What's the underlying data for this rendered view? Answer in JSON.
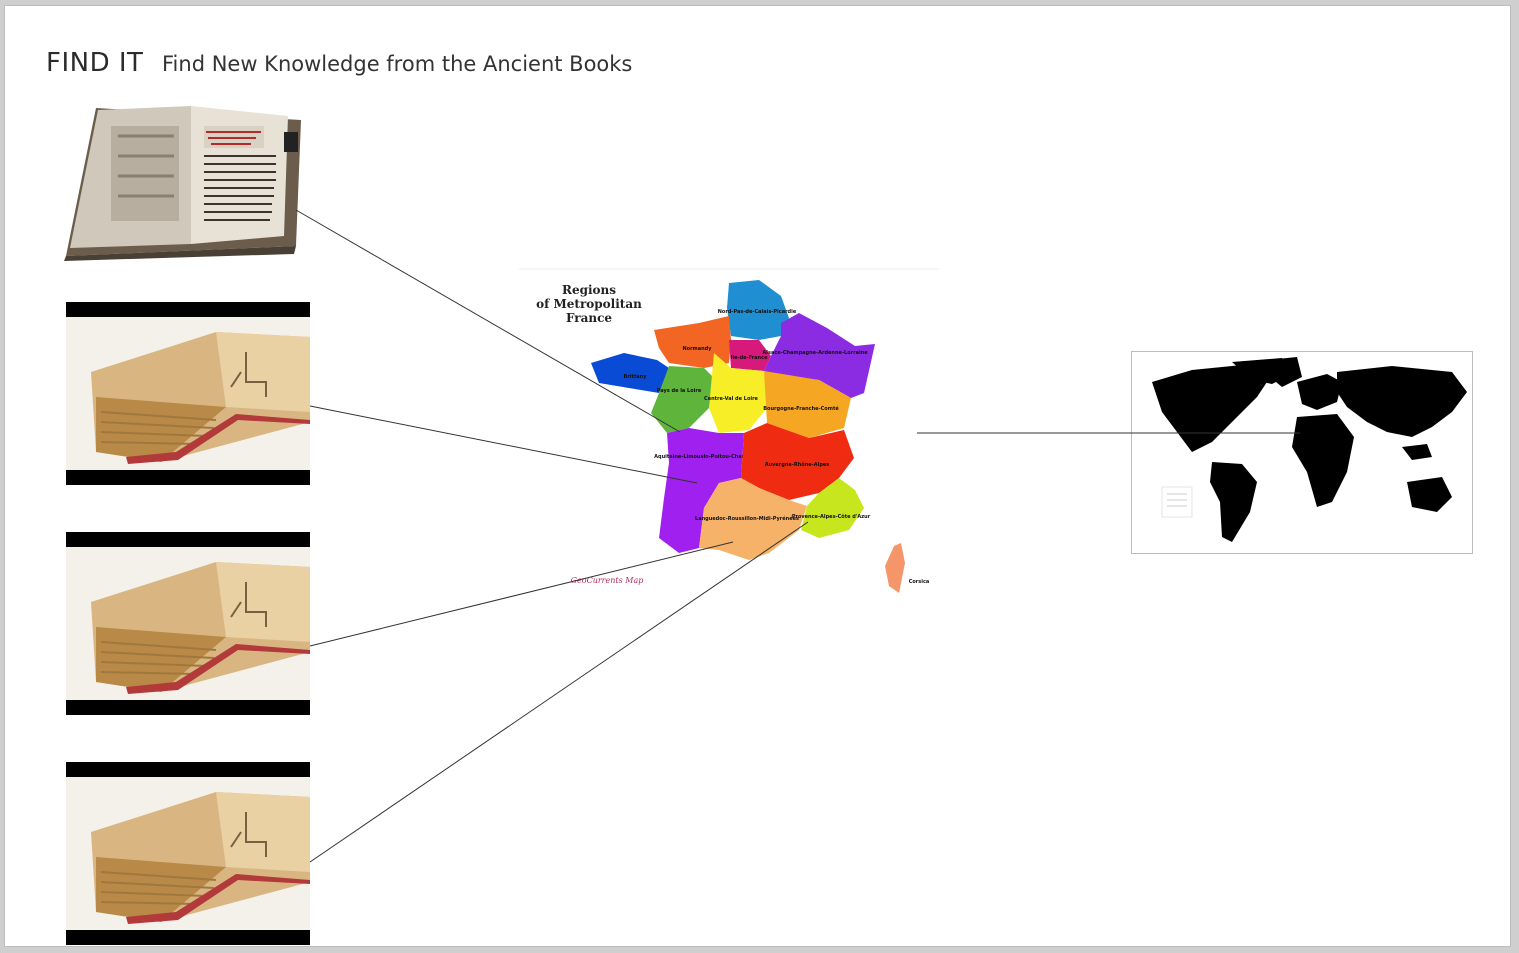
{
  "slide": {
    "title": "FIND IT",
    "subtitle": "Find New Knowledge from the Ancient Books"
  },
  "images": [
    {
      "name": "ancient-book-illustrated",
      "icon": "open-book"
    },
    {
      "name": "ancient-book-manuscript",
      "icon": "open-book"
    },
    {
      "name": "ancient-book-manuscript",
      "icon": "open-book"
    },
    {
      "name": "ancient-book-manuscript",
      "icon": "open-book"
    }
  ],
  "france_map": {
    "title_line1": "Regions",
    "title_line2": "of Metropolitan",
    "title_line3": "France",
    "credit": "GeoCurrents Map",
    "regions": [
      {
        "label": "Nord-Pas-de-Calais-Picardie",
        "color": "#1f8fd1"
      },
      {
        "label": "Normandy",
        "color": "#f26522"
      },
      {
        "label": "Ile-de-France",
        "color": "#d6197a"
      },
      {
        "label": "Alsace-Champagne-Ardenne-Lorraine",
        "color": "#8b2be2"
      },
      {
        "label": "Brittany",
        "color": "#0a4bd6"
      },
      {
        "label": "Pays de la Loire",
        "color": "#5fb53b"
      },
      {
        "label": "Centre-Val de Loire",
        "color": "#f7ee28"
      },
      {
        "label": "Bourgogne-Franche-Comté",
        "color": "#f5a623"
      },
      {
        "label": "Aquitaine-Limousin-Poitou-Charentes",
        "color": "#a020f0"
      },
      {
        "label": "Auvergne-Rhône-Alpes",
        "color": "#ef2b12"
      },
      {
        "label": "Languedoc-Roussillon-Midi-Pyrénées",
        "color": "#f7b26a"
      },
      {
        "label": "Provence-Alpes-Côte d'Azur",
        "color": "#c8e61e"
      },
      {
        "label": "Corsica",
        "color": "#f4956a"
      }
    ]
  },
  "world_map": {
    "name": "world-map",
    "fill": "#000000"
  }
}
